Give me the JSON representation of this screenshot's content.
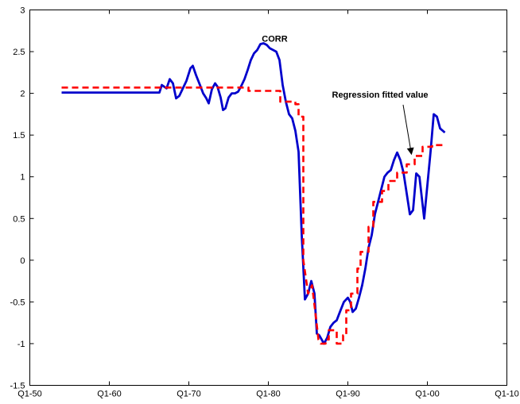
{
  "chart_data": {
    "type": "line",
    "title": "",
    "xlabel": "",
    "ylabel": "",
    "grid": false,
    "xlim": [
      1950,
      2010
    ],
    "ylim": [
      -1.5,
      3
    ],
    "x_ticks": [
      {
        "value": 1950,
        "label": "Q1-50"
      },
      {
        "value": 1960,
        "label": "Q1-60"
      },
      {
        "value": 1970,
        "label": "Q1-70"
      },
      {
        "value": 1980,
        "label": "Q1-80"
      },
      {
        "value": 1990,
        "label": "Q1-90"
      },
      {
        "value": 2000,
        "label": "Q1-00"
      },
      {
        "value": 2010,
        "label": "Q1-10"
      }
    ],
    "y_ticks": [
      {
        "value": -1.5,
        "label": "-1.5"
      },
      {
        "value": -1,
        "label": "-1"
      },
      {
        "value": -0.5,
        "label": "-0.5"
      },
      {
        "value": 0,
        "label": "0"
      },
      {
        "value": 0.5,
        "label": "0.5"
      },
      {
        "value": 1,
        "label": "1"
      },
      {
        "value": 1.5,
        "label": "1.5"
      },
      {
        "value": 2,
        "label": "2"
      },
      {
        "value": 2.5,
        "label": "2.5"
      },
      {
        "value": 3,
        "label": "3"
      }
    ],
    "series": [
      {
        "name": "CORR",
        "color": "#0000cc",
        "style": "solid",
        "points": [
          [
            1954.0,
            2.01
          ],
          [
            1966.3,
            2.01
          ],
          [
            1966.6,
            2.1
          ],
          [
            1967.2,
            2.06
          ],
          [
            1967.6,
            2.17
          ],
          [
            1968.0,
            2.12
          ],
          [
            1968.4,
            1.94
          ],
          [
            1968.8,
            1.97
          ],
          [
            1969.2,
            2.05
          ],
          [
            1969.7,
            2.15
          ],
          [
            1970.2,
            2.3
          ],
          [
            1970.5,
            2.33
          ],
          [
            1970.9,
            2.22
          ],
          [
            1971.4,
            2.1
          ],
          [
            1971.8,
            2.0
          ],
          [
            1972.2,
            1.94
          ],
          [
            1972.5,
            1.88
          ],
          [
            1972.9,
            2.05
          ],
          [
            1973.3,
            2.12
          ],
          [
            1973.6,
            2.08
          ],
          [
            1974.0,
            1.95
          ],
          [
            1974.3,
            1.8
          ],
          [
            1974.6,
            1.82
          ],
          [
            1975.0,
            1.95
          ],
          [
            1975.4,
            2.0
          ],
          [
            1975.8,
            2.0
          ],
          [
            1976.2,
            2.02
          ],
          [
            1976.6,
            2.09
          ],
          [
            1977.0,
            2.17
          ],
          [
            1977.4,
            2.28
          ],
          [
            1977.8,
            2.4
          ],
          [
            1978.2,
            2.48
          ],
          [
            1978.6,
            2.52
          ],
          [
            1979.0,
            2.59
          ],
          [
            1979.4,
            2.6
          ],
          [
            1979.8,
            2.58
          ],
          [
            1980.2,
            2.54
          ],
          [
            1980.6,
            2.52
          ],
          [
            1981.0,
            2.5
          ],
          [
            1981.4,
            2.4
          ],
          [
            1981.8,
            2.1
          ],
          [
            1982.2,
            1.9
          ],
          [
            1982.6,
            1.75
          ],
          [
            1983.0,
            1.7
          ],
          [
            1983.4,
            1.55
          ],
          [
            1983.8,
            1.3
          ],
          [
            1984.2,
            0.3
          ],
          [
            1984.6,
            -0.47
          ],
          [
            1985.0,
            -0.4
          ],
          [
            1985.4,
            -0.25
          ],
          [
            1985.8,
            -0.4
          ],
          [
            1986.1,
            -0.88
          ],
          [
            1986.4,
            -0.9
          ],
          [
            1986.7,
            -0.95
          ],
          [
            1987.0,
            -1.0
          ],
          [
            1987.4,
            -0.93
          ],
          [
            1987.8,
            -0.8
          ],
          [
            1988.2,
            -0.75
          ],
          [
            1988.6,
            -0.72
          ],
          [
            1989.0,
            -0.62
          ],
          [
            1989.5,
            -0.5
          ],
          [
            1990.0,
            -0.45
          ],
          [
            1990.3,
            -0.5
          ],
          [
            1990.6,
            -0.62
          ],
          [
            1991.0,
            -0.58
          ],
          [
            1991.4,
            -0.45
          ],
          [
            1991.8,
            -0.3
          ],
          [
            1992.2,
            -0.1
          ],
          [
            1992.6,
            0.15
          ],
          [
            1993.0,
            0.3
          ],
          [
            1993.4,
            0.55
          ],
          [
            1993.8,
            0.7
          ],
          [
            1994.2,
            0.85
          ],
          [
            1994.6,
            1.0
          ],
          [
            1995.0,
            1.05
          ],
          [
            1995.4,
            1.08
          ],
          [
            1995.8,
            1.2
          ],
          [
            1996.2,
            1.29
          ],
          [
            1996.6,
            1.2
          ],
          [
            1997.0,
            1.05
          ],
          [
            1997.4,
            0.8
          ],
          [
            1997.8,
            0.55
          ],
          [
            1998.2,
            0.6
          ],
          [
            1998.6,
            1.04
          ],
          [
            1999.0,
            1.0
          ],
          [
            1999.3,
            0.75
          ],
          [
            1999.6,
            0.5
          ],
          [
            2000.0,
            0.9
          ],
          [
            2000.4,
            1.3
          ],
          [
            2000.8,
            1.75
          ],
          [
            2001.2,
            1.72
          ],
          [
            2001.6,
            1.58
          ],
          [
            2002.2,
            1.53
          ]
        ]
      },
      {
        "name": "Regression fitted value",
        "color": "#ff0000",
        "style": "dashed",
        "points": [
          [
            1954.0,
            2.07
          ],
          [
            1977.5,
            2.07
          ],
          [
            1977.5,
            2.03
          ],
          [
            1981.5,
            2.03
          ],
          [
            1981.5,
            1.9
          ],
          [
            1983.4,
            1.9
          ],
          [
            1983.4,
            1.87
          ],
          [
            1983.8,
            1.87
          ],
          [
            1983.8,
            1.72
          ],
          [
            1984.4,
            1.72
          ],
          [
            1984.4,
            0.0
          ],
          [
            1985.0,
            -0.4
          ],
          [
            1985.5,
            -0.3
          ],
          [
            1986.0,
            -0.7
          ],
          [
            1986.3,
            -0.95
          ],
          [
            1986.6,
            -1.0
          ],
          [
            1987.2,
            -1.0
          ],
          [
            1987.2,
            -0.95
          ],
          [
            1987.6,
            -0.95
          ],
          [
            1987.6,
            -0.84
          ],
          [
            1988.6,
            -0.84
          ],
          [
            1988.6,
            -1.0
          ],
          [
            1989.4,
            -1.0
          ],
          [
            1989.4,
            -0.9
          ],
          [
            1989.8,
            -0.9
          ],
          [
            1989.8,
            -0.6
          ],
          [
            1990.4,
            -0.6
          ],
          [
            1990.4,
            -0.4
          ],
          [
            1991.2,
            -0.4
          ],
          [
            1991.2,
            -0.1
          ],
          [
            1991.6,
            -0.1
          ],
          [
            1991.6,
            0.1
          ],
          [
            1992.6,
            0.1
          ],
          [
            1992.6,
            0.4
          ],
          [
            1993.2,
            0.4
          ],
          [
            1993.2,
            0.7
          ],
          [
            1994.3,
            0.7
          ],
          [
            1994.3,
            0.83
          ],
          [
            1995.1,
            0.83
          ],
          [
            1995.1,
            0.95
          ],
          [
            1996.2,
            0.95
          ],
          [
            1996.2,
            1.05
          ],
          [
            1997.4,
            1.05
          ],
          [
            1997.4,
            1.15
          ],
          [
            1998.4,
            1.15
          ],
          [
            1998.4,
            1.25
          ],
          [
            1999.4,
            1.25
          ],
          [
            1999.4,
            1.36
          ],
          [
            2000.6,
            1.36
          ],
          [
            2000.6,
            1.38
          ],
          [
            2002.2,
            1.38
          ]
        ]
      }
    ],
    "annotations": [
      {
        "text": "CORR",
        "x": 1980.8,
        "y": 2.62,
        "anchor": "middle"
      },
      {
        "text": "Regression fitted value",
        "x": 1988.0,
        "y": 1.95,
        "anchor": "start",
        "arrow_to": [
          1998.0,
          1.27
        ]
      }
    ]
  }
}
